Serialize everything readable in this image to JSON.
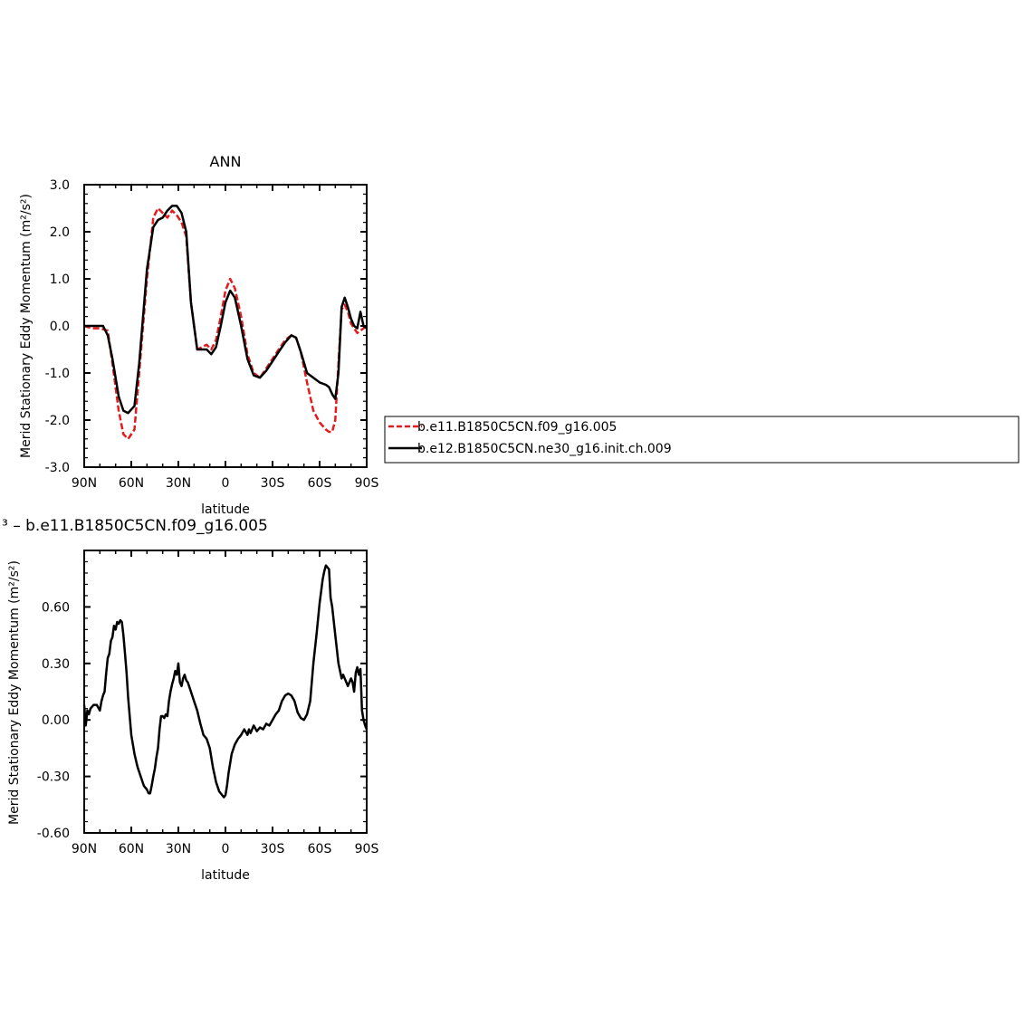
{
  "chart_data": [
    {
      "type": "line",
      "title": "ANN",
      "xlabel": "latitude",
      "ylabel": "Merid Stationary Eddy Momentum (m²/s²)",
      "xlim": [
        90,
        -90
      ],
      "ylim": [
        -3.0,
        3.0
      ],
      "x_ticks": [
        {
          "value": 90,
          "label": "90N"
        },
        {
          "value": 60,
          "label": "60N"
        },
        {
          "value": 30,
          "label": "30N"
        },
        {
          "value": 0,
          "label": "0"
        },
        {
          "value": -30,
          "label": "30S"
        },
        {
          "value": -60,
          "label": "60S"
        },
        {
          "value": -90,
          "label": "90S"
        }
      ],
      "y_ticks": [
        {
          "value": 3.0,
          "label": "3.0"
        },
        {
          "value": 2.0,
          "label": "2.0"
        },
        {
          "value": 1.0,
          "label": "1.0"
        },
        {
          "value": 0.0,
          "label": "0.0"
        },
        {
          "value": -1.0,
          "label": "-1.0"
        },
        {
          "value": -2.0,
          "label": "-2.0"
        },
        {
          "value": -3.0,
          "label": "-3.0"
        }
      ],
      "legend_position": "right, outside plot",
      "series": [
        {
          "name": "b.e11.B1850C5CN.f09_g16.005",
          "color": "#e41a1c",
          "dash": "dashed",
          "x": [
            90,
            85,
            80,
            75,
            72,
            68,
            65,
            62,
            58,
            55,
            50,
            46,
            43,
            40,
            37,
            34,
            31,
            28,
            25,
            22,
            18,
            15,
            12,
            9,
            6,
            3,
            0,
            -3,
            -6,
            -10,
            -14,
            -18,
            -22,
            -26,
            -30,
            -34,
            -38,
            -42,
            -45,
            -48,
            -52,
            -56,
            -60,
            -64,
            -66,
            -68,
            -70,
            -72,
            -74,
            -76,
            -78,
            -80,
            -82,
            -84,
            -86,
            -88,
            -90
          ],
          "y": [
            0.0,
            -0.05,
            -0.05,
            -0.1,
            -0.8,
            -1.8,
            -2.3,
            -2.4,
            -2.2,
            -1.0,
            1.0,
            2.3,
            2.5,
            2.4,
            2.3,
            2.45,
            2.35,
            2.2,
            1.9,
            0.5,
            -0.5,
            -0.45,
            -0.4,
            -0.5,
            -0.3,
            0.2,
            0.75,
            1.0,
            0.8,
            0.2,
            -0.6,
            -1.0,
            -1.1,
            -0.9,
            -0.7,
            -0.5,
            -0.3,
            -0.2,
            -0.25,
            -0.55,
            -1.2,
            -1.8,
            -2.05,
            -2.2,
            -2.25,
            -2.25,
            -2.0,
            -0.8,
            0.35,
            0.45,
            0.3,
            0.05,
            -0.05,
            -0.15,
            -0.1,
            -0.05,
            0.0
          ]
        },
        {
          "name": "b.e12.B1850C5CN.ne30_g16.init.ch.009",
          "color": "#000000",
          "dash": "solid",
          "x": [
            90,
            85,
            80,
            78,
            75,
            72,
            68,
            65,
            62,
            58,
            55,
            50,
            46,
            43,
            40,
            37,
            34,
            31,
            28,
            25,
            22,
            18,
            15,
            12,
            9,
            6,
            3,
            0,
            -3,
            -6,
            -10,
            -14,
            -18,
            -22,
            -26,
            -30,
            -34,
            -38,
            -42,
            -45,
            -48,
            -52,
            -56,
            -60,
            -64,
            -66,
            -68,
            -70,
            -72,
            -74,
            -76,
            -78,
            -80,
            -82,
            -84,
            -86,
            -88,
            -90
          ],
          "y": [
            0.0,
            0.0,
            0.0,
            0.0,
            -0.2,
            -0.7,
            -1.5,
            -1.8,
            -1.85,
            -1.7,
            -0.8,
            1.2,
            2.1,
            2.25,
            2.3,
            2.45,
            2.55,
            2.55,
            2.4,
            2.0,
            0.5,
            -0.5,
            -0.5,
            -0.5,
            -0.6,
            -0.45,
            0.0,
            0.5,
            0.75,
            0.6,
            0.0,
            -0.7,
            -1.05,
            -1.1,
            -0.95,
            -0.75,
            -0.55,
            -0.35,
            -0.2,
            -0.25,
            -0.55,
            -1.0,
            -1.1,
            -1.2,
            -1.25,
            -1.3,
            -1.45,
            -1.55,
            -1.0,
            0.4,
            0.6,
            0.4,
            0.15,
            0.0,
            -0.05,
            0.3,
            0.0,
            -0.05
          ]
        }
      ]
    },
    {
      "type": "line",
      "title": "³ – b.e11.B1850C5CN.f09_g16.005",
      "xlabel": "latitude",
      "ylabel": "Merid Stationary Eddy Momentum (m²/s²)",
      "xlim": [
        90,
        -90
      ],
      "ylim": [
        -0.6,
        0.9
      ],
      "x_ticks": [
        {
          "value": 90,
          "label": "90N"
        },
        {
          "value": 60,
          "label": "60N"
        },
        {
          "value": 30,
          "label": "30N"
        },
        {
          "value": 0,
          "label": "0"
        },
        {
          "value": -30,
          "label": "30S"
        },
        {
          "value": -60,
          "label": "60S"
        },
        {
          "value": -90,
          "label": "90S"
        }
      ],
      "y_ticks": [
        {
          "value": 0.6,
          "label": "0.60"
        },
        {
          "value": 0.3,
          "label": "0.30"
        },
        {
          "value": 0.0,
          "label": "0.00"
        },
        {
          "value": -0.3,
          "label": "-0.30"
        },
        {
          "value": -0.6,
          "label": "-0.60"
        }
      ],
      "series": [
        {
          "color": "#000000",
          "dash": "solid",
          "x": [
            90,
            89,
            88,
            87,
            86,
            84,
            82,
            80,
            79,
            78,
            77,
            76,
            75,
            74,
            73,
            72,
            71,
            70,
            69,
            68,
            67,
            66,
            65,
            64,
            63,
            62,
            60,
            58,
            56,
            54,
            52,
            50,
            49,
            48,
            47,
            46,
            45,
            44,
            43,
            42,
            41,
            40,
            39,
            38,
            37,
            36,
            35,
            34,
            33,
            32,
            31,
            30,
            29,
            28,
            27,
            26,
            25,
            24,
            22,
            20,
            18,
            16,
            14,
            12,
            10,
            8,
            6,
            4,
            2,
            1,
            0,
            -1,
            -2,
            -4,
            -6,
            -8,
            -10,
            -12,
            -14,
            -15,
            -16,
            -18,
            -20,
            -22,
            -24,
            -26,
            -28,
            -30,
            -32,
            -34,
            -36,
            -38,
            -40,
            -42,
            -44,
            -46,
            -48,
            -50,
            -52,
            -54,
            -56,
            -58,
            -60,
            -62,
            -63,
            -64,
            -65,
            -66,
            -67,
            -68,
            -70,
            -72,
            -74,
            -75,
            -76,
            -77,
            -78,
            -79,
            -80,
            -81,
            -82,
            -83,
            -84,
            -85,
            -86,
            -87,
            -88,
            -89,
            -90
          ],
          "y": [
            0.08,
            -0.03,
            0.05,
            0.03,
            0.06,
            0.08,
            0.08,
            0.05,
            0.1,
            0.13,
            0.15,
            0.25,
            0.33,
            0.35,
            0.42,
            0.44,
            0.5,
            0.48,
            0.52,
            0.51,
            0.53,
            0.52,
            0.45,
            0.35,
            0.25,
            0.12,
            -0.08,
            -0.18,
            -0.25,
            -0.3,
            -0.35,
            -0.37,
            -0.39,
            -0.39,
            -0.35,
            -0.3,
            -0.26,
            -0.2,
            -0.15,
            -0.05,
            0.02,
            0.02,
            0.01,
            0.03,
            0.02,
            0.1,
            0.15,
            0.19,
            0.22,
            0.26,
            0.24,
            0.3,
            0.2,
            0.18,
            0.22,
            0.24,
            0.21,
            0.2,
            0.15,
            0.1,
            0.05,
            -0.02,
            -0.08,
            -0.1,
            -0.15,
            -0.25,
            -0.33,
            -0.38,
            -0.4,
            -0.41,
            -0.4,
            -0.35,
            -0.28,
            -0.18,
            -0.13,
            -0.1,
            -0.08,
            -0.05,
            -0.08,
            -0.05,
            -0.07,
            -0.03,
            -0.06,
            -0.04,
            -0.05,
            -0.02,
            -0.03,
            0.0,
            0.03,
            0.05,
            0.1,
            0.13,
            0.14,
            0.13,
            0.1,
            0.04,
            0.01,
            0.0,
            0.03,
            0.1,
            0.3,
            0.45,
            0.62,
            0.75,
            0.79,
            0.82,
            0.81,
            0.8,
            0.65,
            0.6,
            0.45,
            0.3,
            0.22,
            0.24,
            0.22,
            0.2,
            0.18,
            0.2,
            0.22,
            0.2,
            0.15,
            0.25,
            0.28,
            0.24,
            0.27,
            0.05,
            0.0,
            -0.03,
            -0.05
          ]
        }
      ]
    }
  ],
  "legend": {
    "items": [
      {
        "label": "b.e11.B1850C5CN.f09_g16.005"
      },
      {
        "label": "b.e12.B1850C5CN.ne30_g16.init.ch.009"
      }
    ]
  }
}
